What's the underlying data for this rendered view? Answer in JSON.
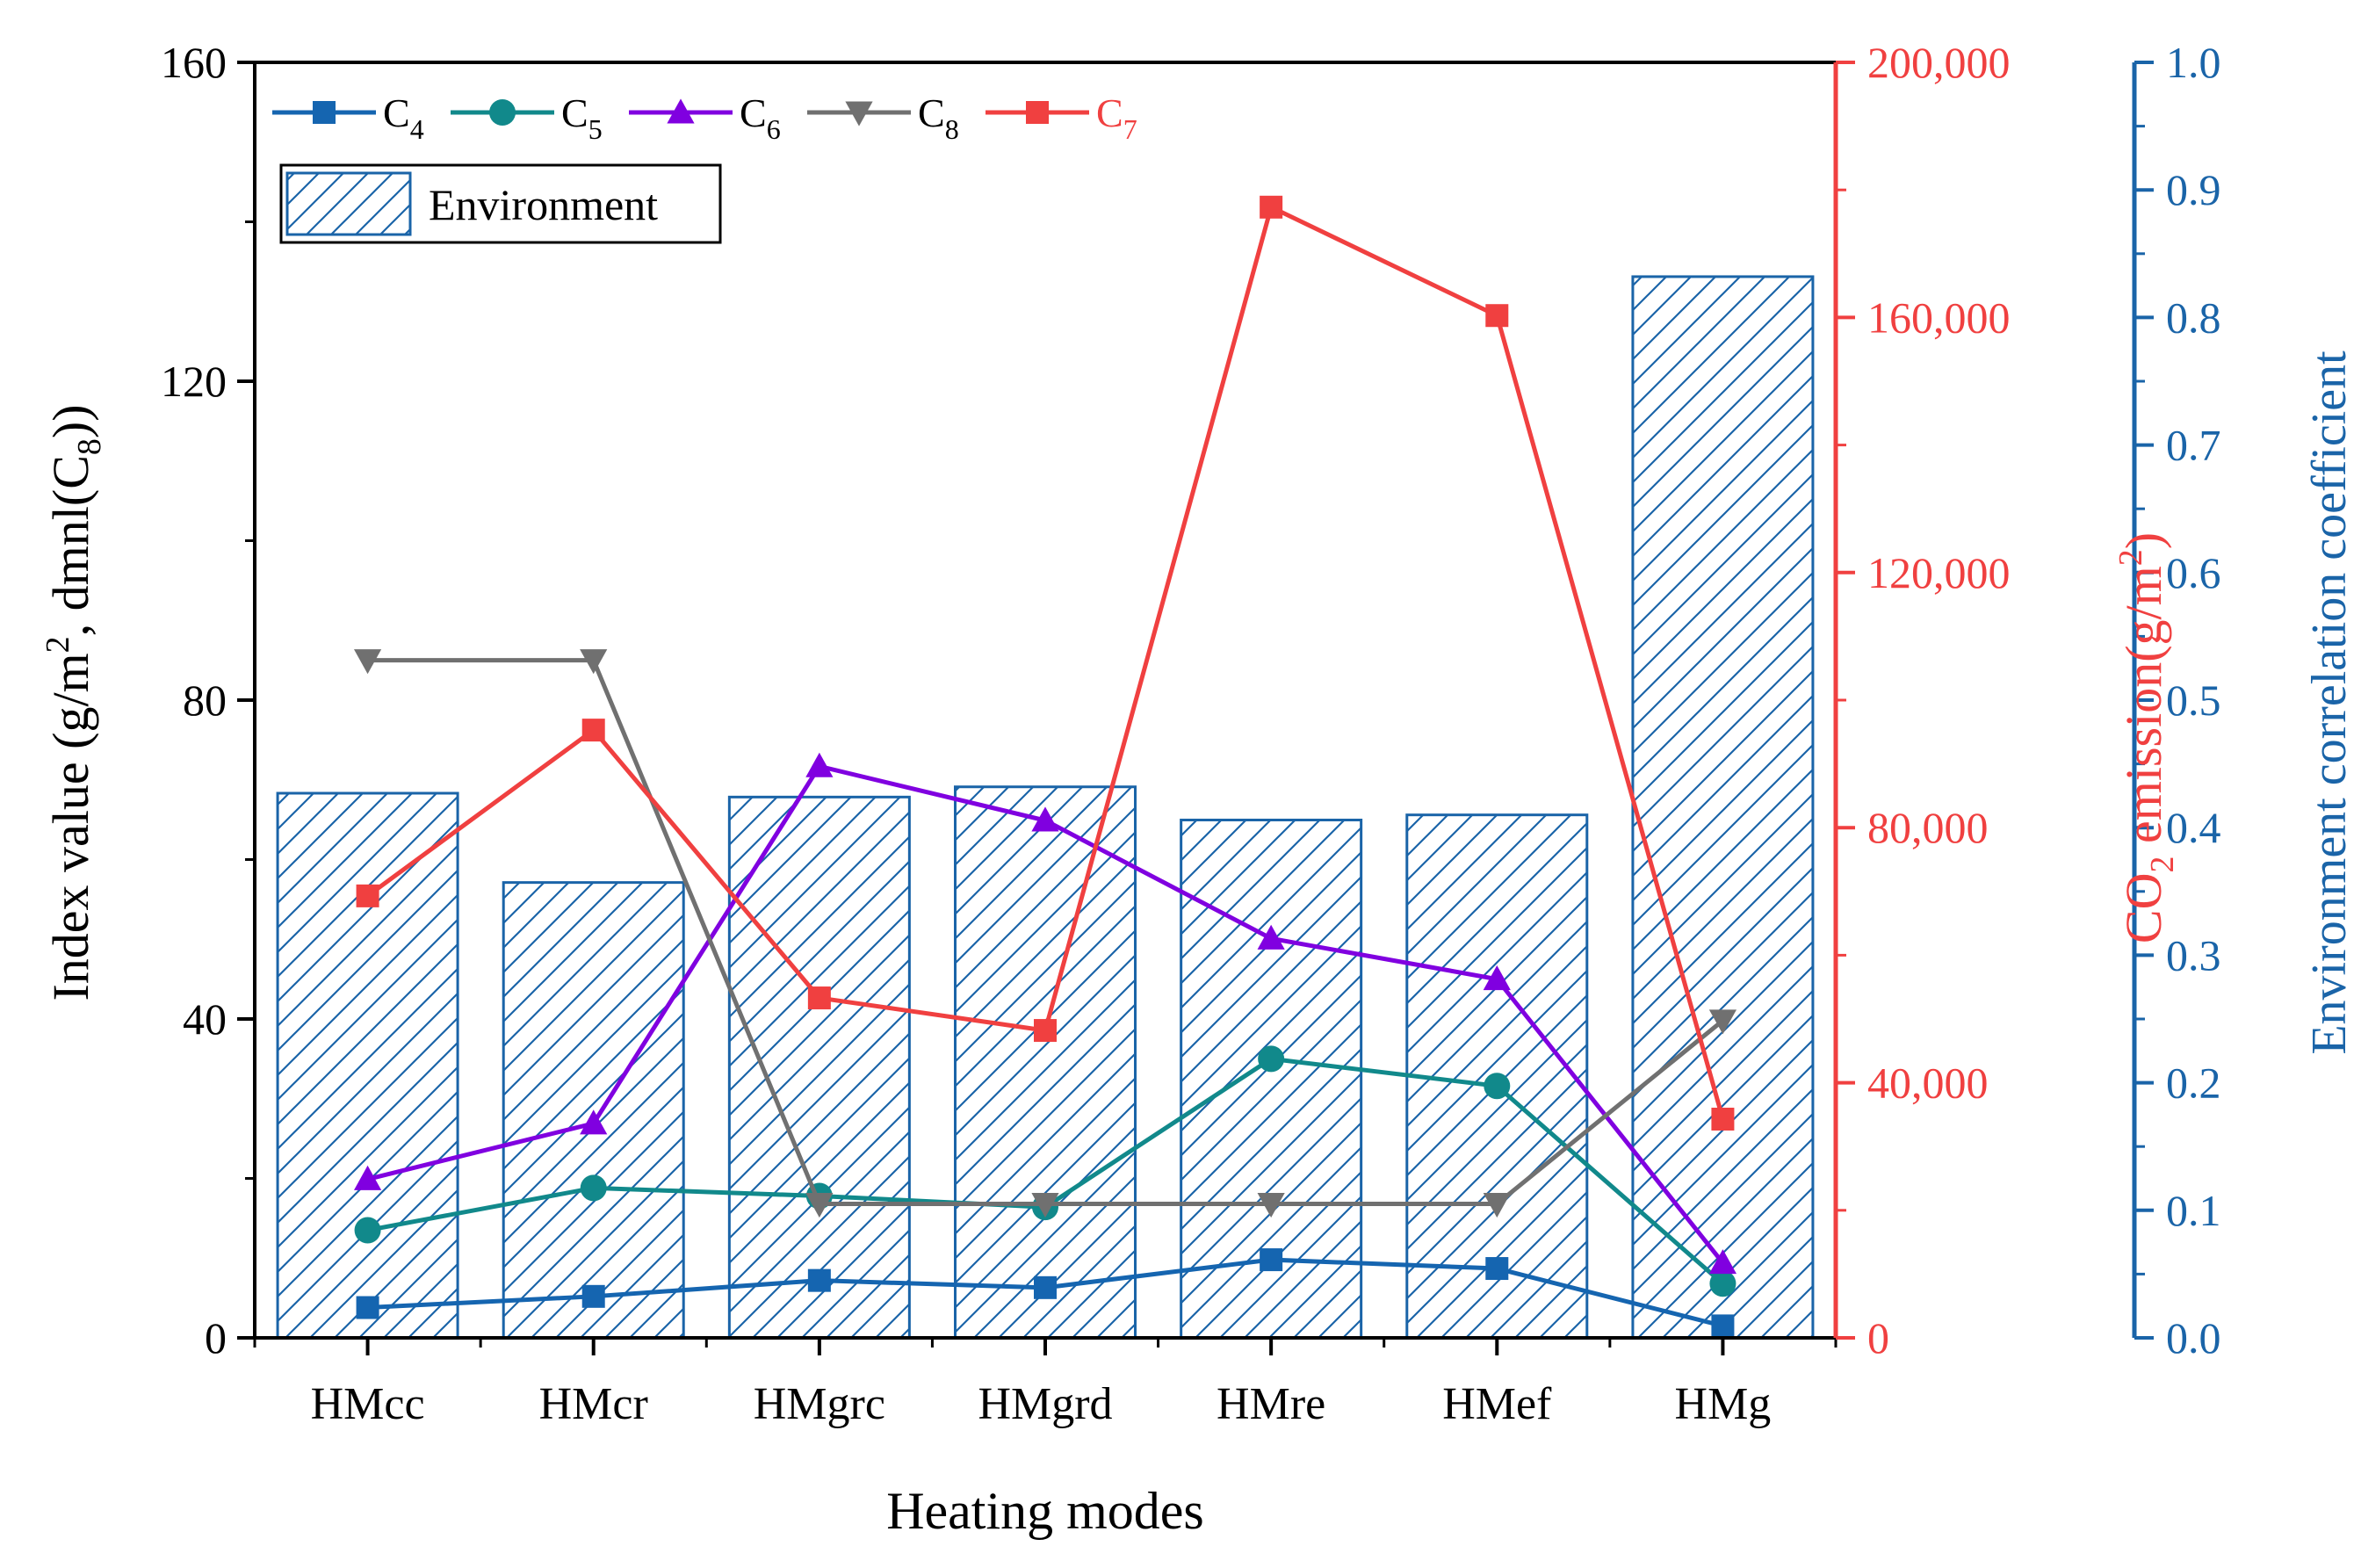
{
  "chart_data": {
    "type": "bar",
    "categories": [
      "HMcc",
      "HMcr",
      "HMgrc",
      "HMgrd",
      "HMre",
      "HMef",
      "HMg"
    ],
    "xlabel": "Heating modes",
    "axes": {
      "left": {
        "label": "Index value (g/m², dmnl(C₈))",
        "ylim": [
          0,
          160
        ],
        "ticks": [
          "0",
          "40",
          "80",
          "120",
          "160"
        ],
        "color": "#000000"
      },
      "right_co2": {
        "label": "CO₂ emission(g/m²)",
        "ylim": [
          0,
          200000
        ],
        "ticks": [
          "0",
          "40,000",
          "80,000",
          "120,000",
          "160,000",
          "200,000"
        ],
        "color": "#f04040"
      },
      "right_env": {
        "label": "Environment correlation coefficient",
        "ylim": [
          0,
          1
        ],
        "ticks": [
          "0.0",
          "0.1",
          "0.2",
          "0.3",
          "0.4",
          "0.5",
          "0.6",
          "0.7",
          "0.8",
          "0.9",
          "1.0"
        ],
        "color": "#1a64a8"
      }
    },
    "bars": {
      "name": "Environment",
      "axis": "right_env",
      "color": "#1a64a8",
      "pattern": "hatched",
      "values": [
        0.427,
        0.357,
        0.424,
        0.432,
        0.406,
        0.41,
        0.832
      ]
    },
    "series": [
      {
        "name": "C4",
        "sub": "4",
        "axis": "left",
        "marker": "square",
        "color": "#1565b0",
        "values": [
          3.8,
          5.2,
          7.2,
          6.3,
          9.8,
          8.7,
          1.5
        ]
      },
      {
        "name": "C5",
        "sub": "5",
        "axis": "left",
        "marker": "circle",
        "color": "#11898b",
        "values": [
          13.5,
          18.8,
          17.8,
          16.4,
          35.0,
          31.6,
          6.8
        ]
      },
      {
        "name": "C6",
        "sub": "6",
        "axis": "left",
        "marker": "triangle-up",
        "color": "#8000e0",
        "values": [
          19.9,
          26.9,
          71.7,
          64.9,
          50.1,
          45.0,
          9.4
        ]
      },
      {
        "name": "C8",
        "sub": "8",
        "axis": "left",
        "marker": "triangle-down",
        "color": "#707070",
        "values": [
          85.0,
          85.0,
          16.8,
          16.8,
          16.8,
          16.8,
          39.8
        ]
      },
      {
        "name": "C7",
        "sub": "7",
        "axis": "right_co2",
        "marker": "square",
        "color": "#f04040",
        "values": [
          69300,
          95300,
          53300,
          48200,
          177300,
          160300,
          34300
        ]
      }
    ],
    "legend": {
      "position": "top-left",
      "bar_label": "Environment"
    }
  }
}
